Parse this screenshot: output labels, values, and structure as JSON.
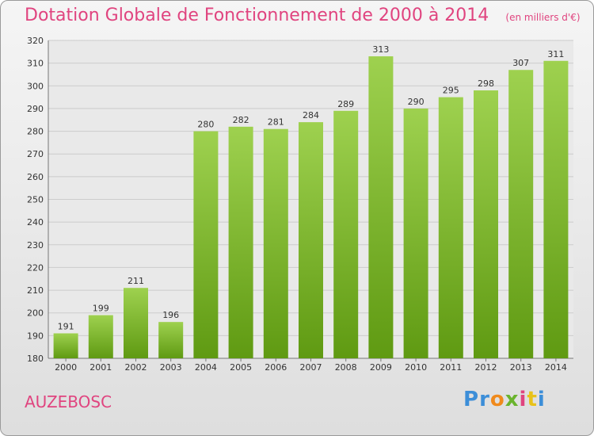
{
  "header": {
    "title": "Dotation Globale de Fonctionnement de 2000 à 2014",
    "unit": "(en milliers d'€)"
  },
  "footer": {
    "commune": "AUZEBOSC",
    "logo": [
      "P",
      "r",
      "o",
      "x",
      "i",
      "t",
      "i"
    ]
  },
  "colors": {
    "bar_top": "#9ed14f",
    "bar_bottom": "#5f9a12",
    "grid": "#cccccc",
    "title": "#e0447f"
  },
  "chart_data": {
    "type": "bar",
    "title": "Dotation Globale de Fonctionnement de 2000 à 2014",
    "categories": [
      "2000",
      "2001",
      "2002",
      "2003",
      "2004",
      "2005",
      "2006",
      "2007",
      "2008",
      "2009",
      "2010",
      "2011",
      "2012",
      "2013",
      "2014"
    ],
    "values": [
      191,
      199,
      211,
      196,
      280,
      282,
      281,
      284,
      289,
      313,
      290,
      295,
      298,
      307,
      311
    ],
    "ylim": [
      180,
      320
    ],
    "yticks": [
      180,
      190,
      200,
      210,
      220,
      230,
      240,
      250,
      260,
      270,
      280,
      290,
      300,
      310,
      320
    ],
    "grid": true,
    "data_labels": true
  }
}
